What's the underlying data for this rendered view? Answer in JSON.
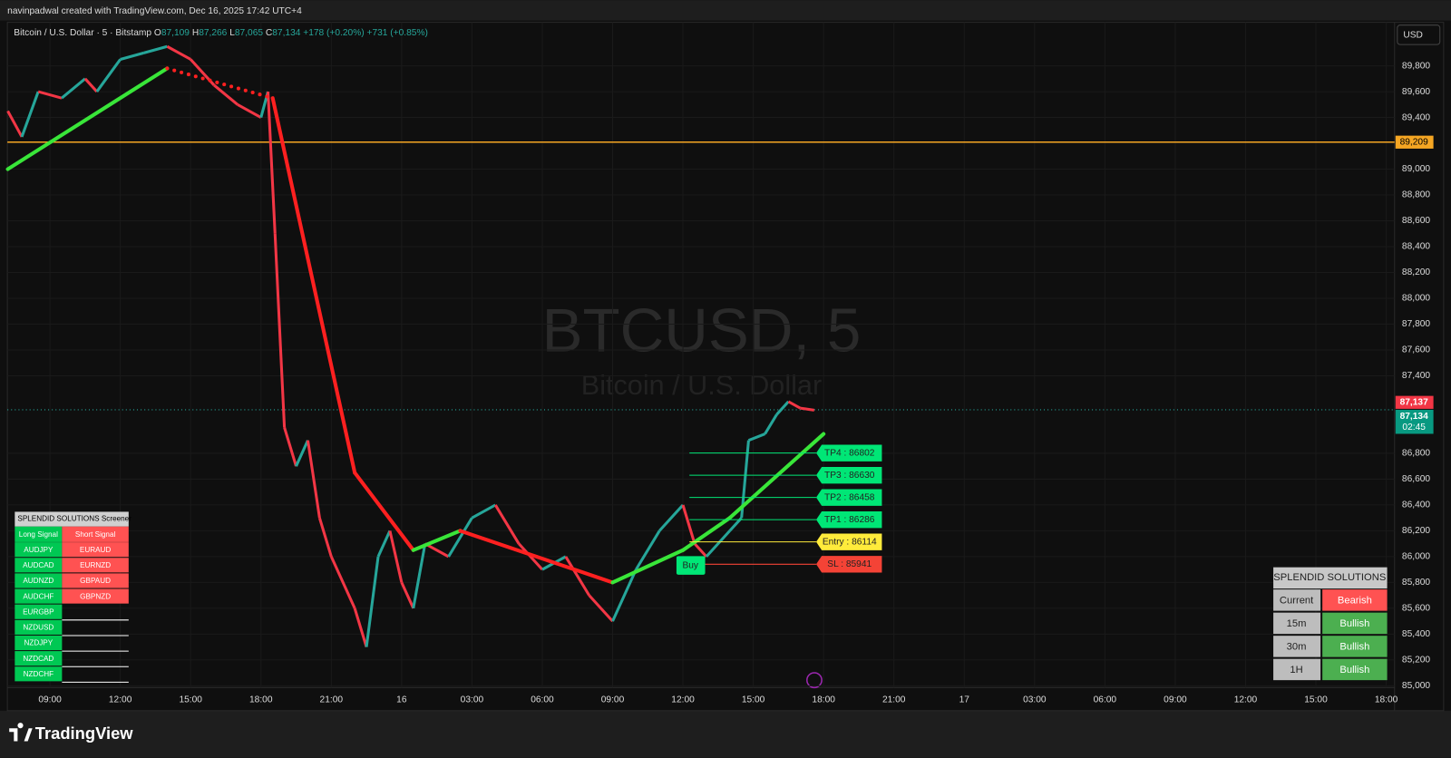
{
  "header": {
    "credit": "navinpadwal created with TradingView.com, Dec 16, 2025 17:42 UTC+4",
    "symbol": "Bitcoin / U.S. Dollar · 5 · Bitstamp",
    "ohlc": [
      {
        "k": "O",
        "v": "87,109"
      },
      {
        "k": "H",
        "v": "87,266"
      },
      {
        "k": "L",
        "v": "87,065"
      },
      {
        "k": "C",
        "v": "87,134"
      }
    ],
    "change": "+178 (+0.20%)",
    "change2": "+731 (+0.85%)",
    "currency": "USD"
  },
  "watermark": {
    "title": "BTCUSD, 5",
    "subtitle": "Bitcoin / U.S. Dollar"
  },
  "price_axis": [
    {
      "value": 89800,
      "label": "89,800"
    },
    {
      "value": 89600,
      "label": "89,600"
    },
    {
      "value": 89400,
      "label": "89,400"
    },
    {
      "value": 89000,
      "label": "89,000"
    },
    {
      "value": 88800,
      "label": "88,800"
    },
    {
      "value": 88600,
      "label": "88,600"
    },
    {
      "value": 88400,
      "label": "88,400"
    },
    {
      "value": 88200,
      "label": "88,200"
    },
    {
      "value": 88000,
      "label": "88,000"
    },
    {
      "value": 87800,
      "label": "87,800"
    },
    {
      "value": 87600,
      "label": "87,600"
    },
    {
      "value": 87400,
      "label": "87,400"
    },
    {
      "value": 86800,
      "label": "86,800"
    },
    {
      "value": 86600,
      "label": "86,600"
    },
    {
      "value": 86400,
      "label": "86,400"
    },
    {
      "value": 86200,
      "label": "86,200"
    },
    {
      "value": 86000,
      "label": "86,000"
    },
    {
      "value": 85800,
      "label": "85,800"
    },
    {
      "value": 85600,
      "label": "85,600"
    },
    {
      "value": 85400,
      "label": "85,400"
    },
    {
      "value": 85200,
      "label": "85,200"
    },
    {
      "value": 85000,
      "label": "85,000"
    }
  ],
  "time_axis": [
    "09:00",
    "12:00",
    "15:00",
    "18:00",
    "21:00",
    "16",
    "03:00",
    "06:00",
    "09:00",
    "12:00",
    "15:00",
    "18:00",
    "21:00",
    "17",
    "03:00",
    "06:00",
    "09:00",
    "12:00",
    "15:00",
    "18:00"
  ],
  "level_line": {
    "value": 89209,
    "label": "89,209",
    "color": "#f5a623"
  },
  "last_price": {
    "value": 87137,
    "label": "87,137",
    "close_label": "87,134",
    "countdown": "02:45"
  },
  "price_trace": {
    "up_color": "#26a69a",
    "down_color": "#f23645",
    "t": [
      -1.8,
      -1.2,
      -0.5,
      0.5,
      1.5,
      2,
      3,
      4,
      5,
      6,
      7,
      8,
      9,
      9.3,
      9.6,
      10,
      10.5,
      11,
      11.5,
      12,
      13,
      13.5,
      14,
      14.5,
      15,
      15.5,
      16,
      17,
      18,
      19,
      20,
      21,
      22,
      23,
      24,
      25,
      26,
      27,
      27.5,
      28,
      29,
      29.5,
      29.8,
      30.5,
      31,
      31.5,
      32,
      32.6
    ],
    "price": [
      89450,
      89250,
      89600,
      89550,
      89700,
      89600,
      89850,
      89900,
      89950,
      89850,
      89650,
      89500,
      89400,
      89600,
      88500,
      87000,
      86700,
      86900,
      86300,
      86000,
      85600,
      85300,
      86000,
      86200,
      85800,
      85600,
      86100,
      86000,
      86300,
      86400,
      86100,
      85900,
      86000,
      85700,
      85500,
      85900,
      86200,
      86400,
      86100,
      86000,
      86200,
      86300,
      86900,
      86950,
      87100,
      87200,
      87150,
      87134
    ]
  },
  "trend_line": {
    "t": [
      -1.8,
      5,
      9.5,
      13,
      15.5,
      17.5,
      24,
      27,
      29,
      33
    ],
    "price": [
      89000,
      89780,
      89550,
      86650,
      86050,
      86200,
      85800,
      86050,
      86300,
      86950
    ],
    "segment_colors": [
      "#39e639",
      "#ff2020",
      "#ff2020",
      "#ff2020",
      "#39e639",
      "#ff2020",
      "#39e639",
      "#39e639",
      "#39e639"
    ]
  },
  "signal": {
    "buy": "Buy",
    "levels": [
      {
        "label": "TP4 : 86802",
        "price": 86802,
        "color": "#00e676"
      },
      {
        "label": "TP3 : 86630",
        "price": 86630,
        "color": "#00e676"
      },
      {
        "label": "TP2 : 86458",
        "price": 86458,
        "color": "#00e676"
      },
      {
        "label": "TP1 : 86286",
        "price": 86286,
        "color": "#00e676"
      },
      {
        "label": "Entry : 86114",
        "price": 86114,
        "color": "#ffeb3b"
      },
      {
        "label": "SL : 85941",
        "price": 85941,
        "color": "#f44336"
      }
    ]
  },
  "screener": {
    "title": "SPLENDID SOLUTIONS Screener",
    "long_header": "Long Signal",
    "short_header": "Short Signal",
    "long": [
      "AUDJPY",
      "AUDCAD",
      "AUDNZD",
      "AUDCHF",
      "EURGBP",
      "NZDUSD",
      "NZDJPY",
      "NZDCAD",
      "NZDCHF"
    ],
    "short": [
      "EURAUD",
      "EURNZD",
      "GBPAUD",
      "GBPNZD"
    ]
  },
  "trend_table": {
    "title": "SPLENDID SOLUTIONS",
    "rows": [
      [
        "Current",
        "Bearish"
      ],
      [
        "15m",
        "Bullish"
      ],
      [
        "30m",
        "Bullish"
      ],
      [
        "1H",
        "Bullish"
      ]
    ]
  },
  "footer": {
    "brand": "TradingView"
  }
}
